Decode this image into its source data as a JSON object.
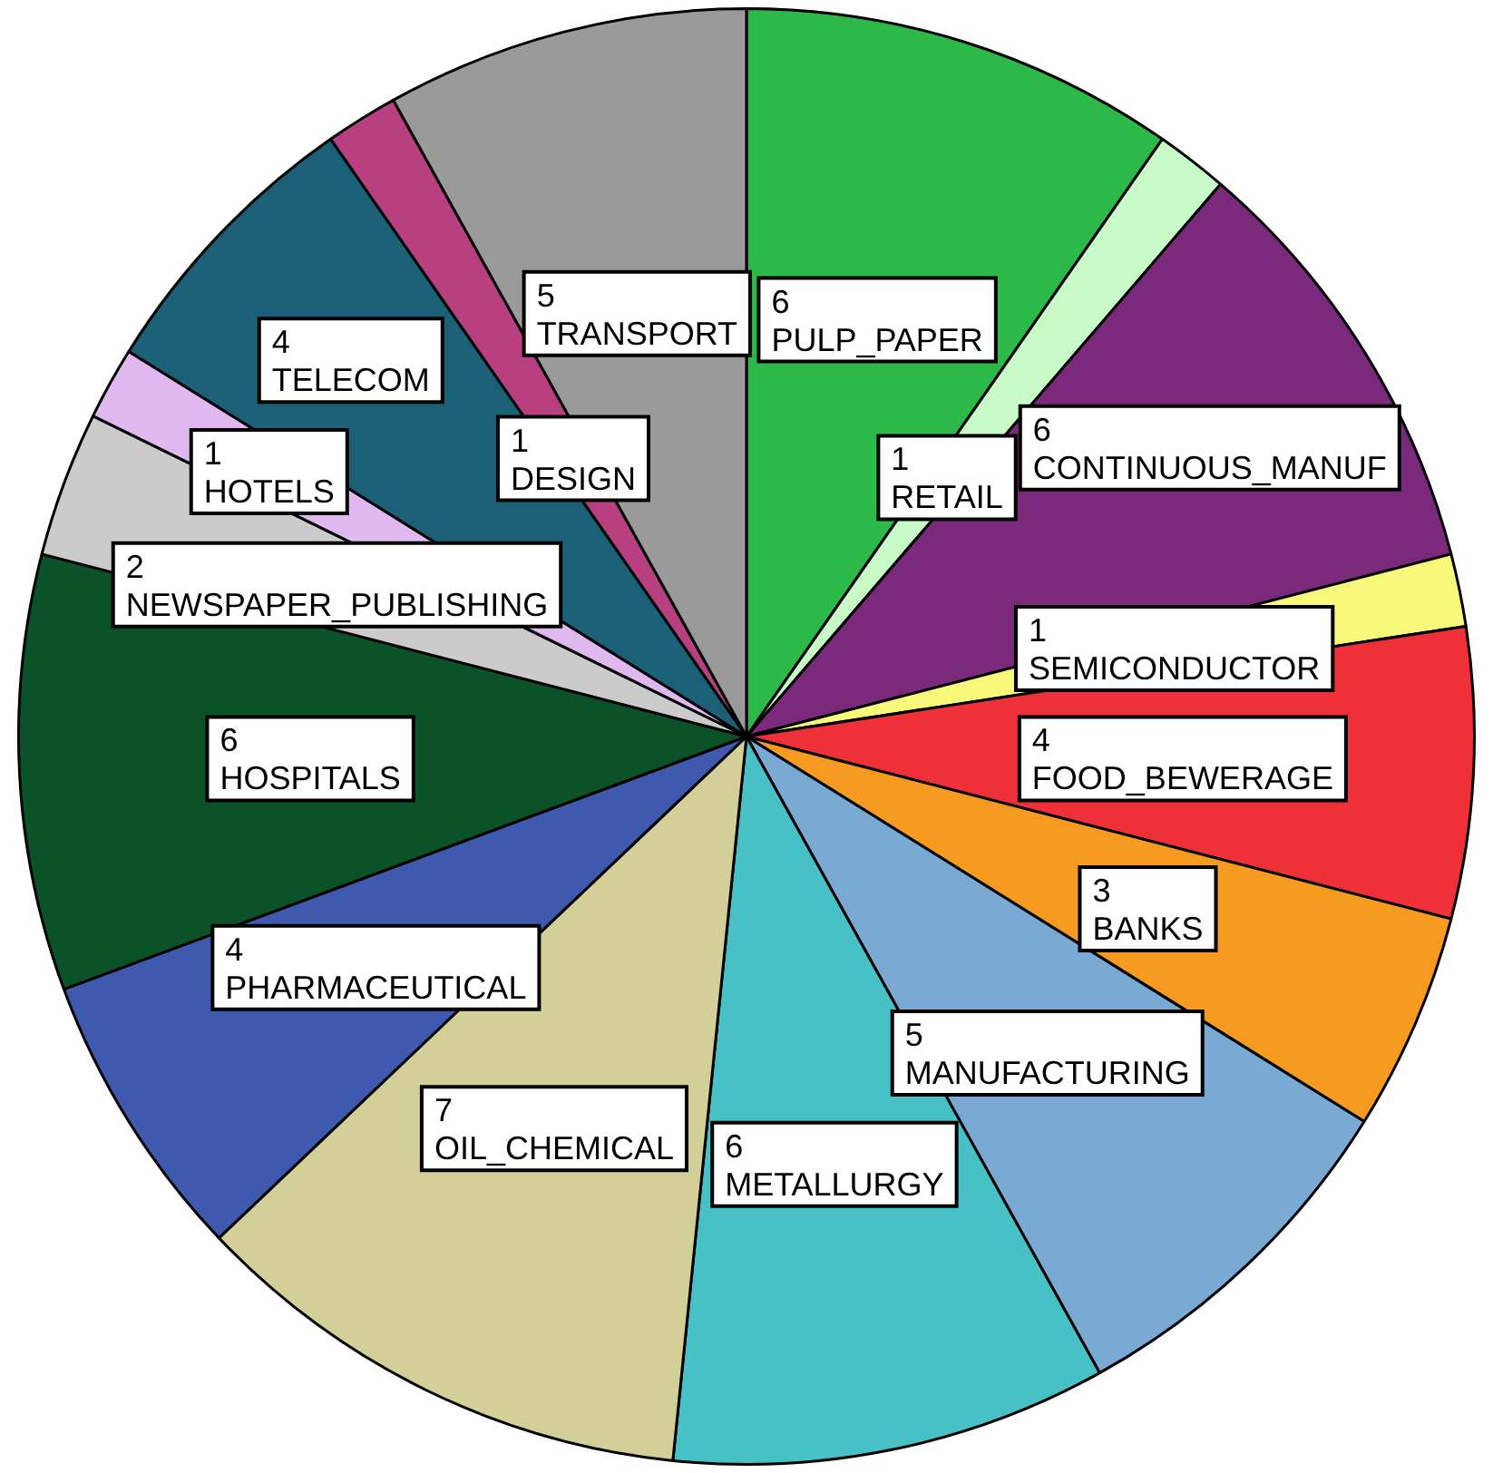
{
  "chart_data": {
    "type": "pie",
    "categories": [
      "PULP_PAPER",
      "RETAIL",
      "CONTINUOUS_MANUF",
      "SEMICONDUCTOR",
      "FOOD_BEWERAGE",
      "BANKS",
      "MANUFACTURING",
      "METALLURGY",
      "OIL_CHEMICAL",
      "PHARMACEUTICAL",
      "HOSPITALS",
      "NEWSPAPER_PUBLISHING",
      "HOTELS",
      "TELECOM",
      "DESIGN",
      "TRANSPORT"
    ],
    "values": [
      6,
      1,
      6,
      1,
      4,
      3,
      5,
      6,
      7,
      4,
      6,
      2,
      1,
      4,
      1,
      5
    ],
    "colors": [
      "#2db84a",
      "#c8fbc8",
      "#7b2a7b",
      "#f8f87a",
      "#f03038",
      "#f79a20",
      "#7aaad4",
      "#48c1c6",
      "#d3cf98",
      "#3f59ae",
      "#0b5228",
      "#cbcbcb",
      "#e0b8f0",
      "#1c6078",
      "#b94080",
      "#9a9a9a"
    ],
    "data_labels": true,
    "legend": false
  }
}
